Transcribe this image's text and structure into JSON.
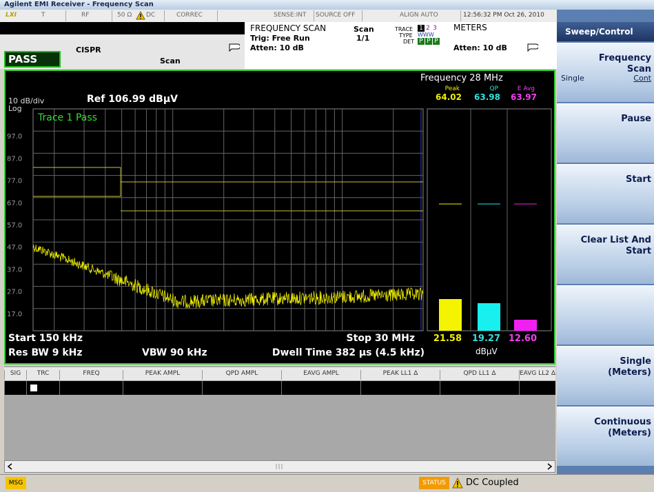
{
  "window": {
    "title": "Agilent EMI Receiver - Frequency Scan"
  },
  "status_row": {
    "lxi": "LXI",
    "trigger": "T",
    "input": "RF",
    "impedance": "50 Ω",
    "coupling": "DC",
    "correction": "CORREC",
    "sense": "SENSE:INT",
    "source": "SOURCE OFF",
    "align": "ALIGN AUTO",
    "datetime": "12:56:32 PM Oct 26, 2010"
  },
  "info": {
    "result": "PASS",
    "standard": "CISPR",
    "mode": "Scan",
    "measurement": "FREQUENCY SCAN",
    "trigger": "Trig: Free Run",
    "atten": "Atten: 10 dB",
    "scan_label": "Scan",
    "scan_count": "1/1",
    "trace_label": "TRACE",
    "trace_numbers": [
      "1",
      "2",
      "3"
    ],
    "type_label": "TYPE",
    "types": "WWW",
    "det_label": "DET",
    "dets": [
      "P",
      "P",
      "P"
    ],
    "meters_label": "METERS",
    "meters_atten": "Atten: 10 dB"
  },
  "graph": {
    "scale": "10 dB/div",
    "ref": "Ref 106.99 dBµV",
    "log": "Log",
    "trace_status": "Trace 1 Pass",
    "y_labels": [
      "97.0",
      "87.0",
      "77.0",
      "67.0",
      "57.0",
      "47.0",
      "37.0",
      "27.0",
      "17.0"
    ],
    "start": "Start 150 kHz",
    "stop": "Stop 30 MHz",
    "res_bw": "Res BW 9 kHz",
    "vbw": "VBW 90 kHz",
    "dwell": "Dwell Time 382 µs (4.5 kHz)"
  },
  "meters": {
    "frequency": "Frequency 28 MHz",
    "detectors": [
      "Peak",
      "QP",
      "E Avg"
    ],
    "marker_values": [
      "64.02",
      "63.98",
      "63.97"
    ],
    "values": [
      "21.58",
      "19.27",
      "12.60"
    ],
    "unit": "dBµV"
  },
  "table": {
    "columns": [
      "SIG",
      "TRC",
      "FREQ",
      "PEAK AMPL",
      "QPD AMPL",
      "EAVG AMPL",
      "PEAK LL1 Δ",
      "QPD LL1 Δ",
      "EAVG LL2 Δ"
    ]
  },
  "softkeys": {
    "menu": "Sweep/Control",
    "keys": [
      {
        "label": "Frequency\nScan",
        "options": [
          "Single",
          "Cont"
        ]
      },
      {
        "label": "Pause"
      },
      {
        "label": "Start"
      },
      {
        "label": "Clear List And\nStart"
      },
      {
        "label": "Single\n(Meters)"
      },
      {
        "label": "Continuous\n(Meters)"
      }
    ]
  },
  "status_bar": {
    "msg": "MSG",
    "status": "STATUS",
    "message": "DC Coupled"
  }
}
